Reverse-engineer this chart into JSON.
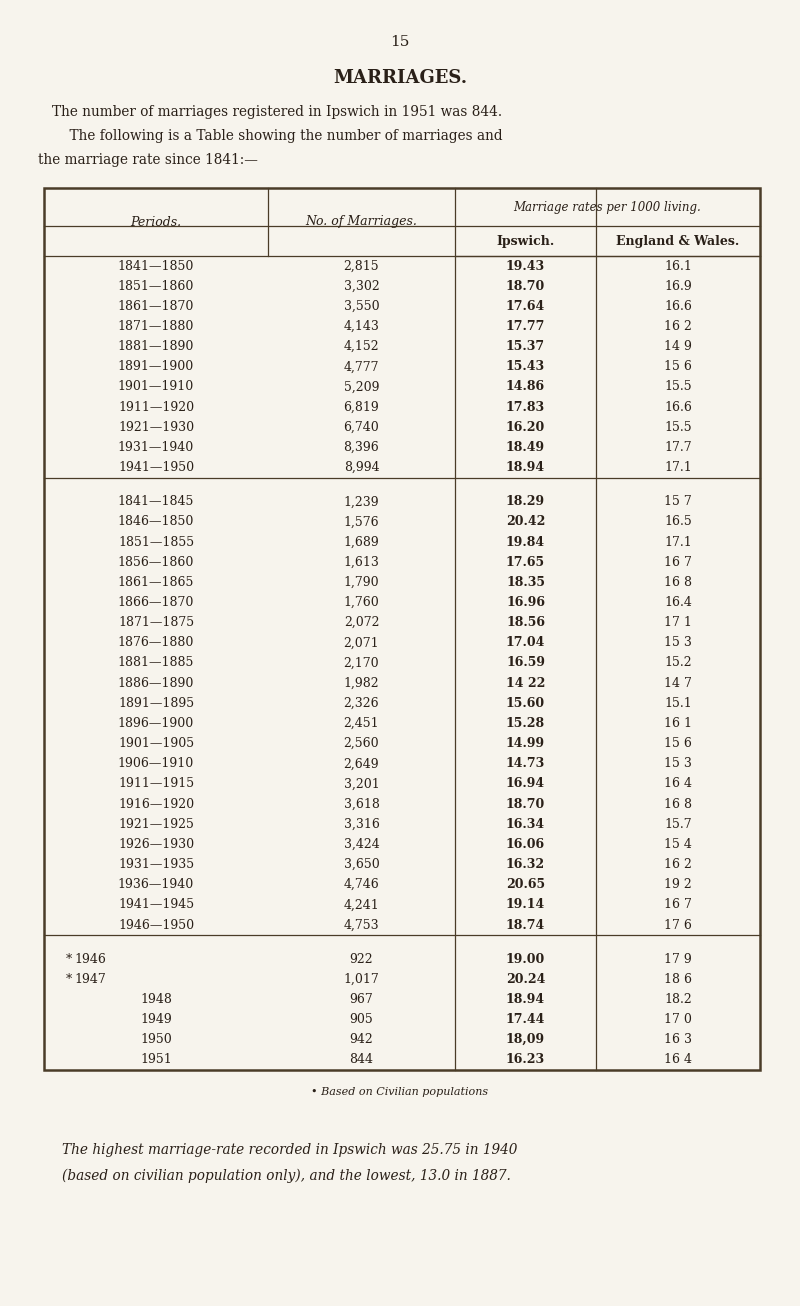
{
  "page_number": "15",
  "title": "MARRIAGES.",
  "intro_line1": "The number of marriages registered in Ipswich in 1951 was 844.",
  "intro_line2": "    The following is a Table showing the number of marriages and",
  "intro_line3": "the marriage rate since 1841:—",
  "col_header1": "Periods.",
  "col_header2": "No. of Marriages.",
  "col_header3": "Marriage rates per 1000 living.",
  "col_header3a": "Ipswich.",
  "col_header3b": "England & Wales.",
  "rows_group1": [
    [
      "1841—1850",
      "2,815",
      "19.43",
      "16.1"
    ],
    [
      "1851—1860",
      "3,302",
      "18.70",
      "16.9"
    ],
    [
      "1861—1870",
      "3,550",
      "17.64",
      "16.6"
    ],
    [
      "1871—1880",
      "4,143",
      "17.77",
      "16 2"
    ],
    [
      "1881—1890",
      "4,152",
      "15.37",
      "14 9"
    ],
    [
      "1891—1900",
      "4,777",
      "15.43",
      "15 6"
    ],
    [
      "1901—1910",
      "5,209",
      "14.86",
      "15.5"
    ],
    [
      "1911—1920",
      "6,819",
      "17.83",
      "16.6"
    ],
    [
      "1921—1930",
      "6,740",
      "16.20",
      "15.5"
    ],
    [
      "1931—1940",
      "8,396",
      "18.49",
      "17.7"
    ],
    [
      "1941—1950",
      "8,994",
      "18.94",
      "17.1"
    ]
  ],
  "rows_group2": [
    [
      "1841—1845",
      "1,239",
      "18.29",
      "15 7"
    ],
    [
      "1846—1850",
      "1,576",
      "20.42",
      "16.5"
    ],
    [
      "1851—1855",
      "1,689",
      "19.84",
      "17.1"
    ],
    [
      "1856—1860",
      "1,613",
      "17.65",
      "16 7"
    ],
    [
      "1861—1865",
      "1,790",
      "18.35",
      "16 8"
    ],
    [
      "1866—1870",
      "1,760",
      "16.96",
      "16.4"
    ],
    [
      "1871—1875",
      "2,072",
      "18.56",
      "17 1"
    ],
    [
      "1876—1880",
      "2,071",
      "17.04",
      "15 3"
    ],
    [
      "1881—1885",
      "2,170",
      "16.59",
      "15.2"
    ],
    [
      "1886—1890",
      "1,982",
      "14 22",
      "14 7"
    ],
    [
      "1891—1895",
      "2,326",
      "15.60",
      "15.1"
    ],
    [
      "1896—1900",
      "2,451",
      "15.28",
      "16 1"
    ],
    [
      "1901—1905",
      "2,560",
      "14.99",
      "15 6"
    ],
    [
      "1906—1910",
      "2,649",
      "14.73",
      "15 3"
    ],
    [
      "1911—1915",
      "3,201",
      "16.94",
      "16 4"
    ],
    [
      "1916—1920",
      "3,618",
      "18.70",
      "16 8"
    ],
    [
      "1921—1925",
      "3,316",
      "16.34",
      "15.7"
    ],
    [
      "1926—1930",
      "3,424",
      "16.06",
      "15 4"
    ],
    [
      "1931—1935",
      "3,650",
      "16.32",
      "16 2"
    ],
    [
      "1936—1940",
      "4,746",
      "20.65",
      "19 2"
    ],
    [
      "1941—1945",
      "4,241",
      "19.14",
      "16 7"
    ],
    [
      "1946—1950",
      "4,753",
      "18.74",
      "17 6"
    ]
  ],
  "rows_group3": [
    [
      "’1946",
      "922",
      "19.00",
      "17 9"
    ],
    [
      "’1947",
      "1,017",
      "20.24",
      "18 6"
    ],
    [
      "1948",
      "967",
      "18.94",
      "18.2"
    ],
    [
      "1949",
      "905",
      "17.44",
      "17 0"
    ],
    [
      "1950",
      "942",
      "18,09",
      "16 3"
    ],
    [
      "1951",
      "844",
      "16.23",
      "16 4"
    ]
  ],
  "footnote": "• Based on Civilian populations",
  "closing_text1": "The highest marriage-rate recorded in Ipswich was 25.75 in 1940",
  "closing_text2": "(based on civilian population only), and the lowest, 13.0 in 1887.",
  "bg_color": "#f7f4ed",
  "text_color": "#2a2018",
  "table_border_color": "#4a3c28"
}
